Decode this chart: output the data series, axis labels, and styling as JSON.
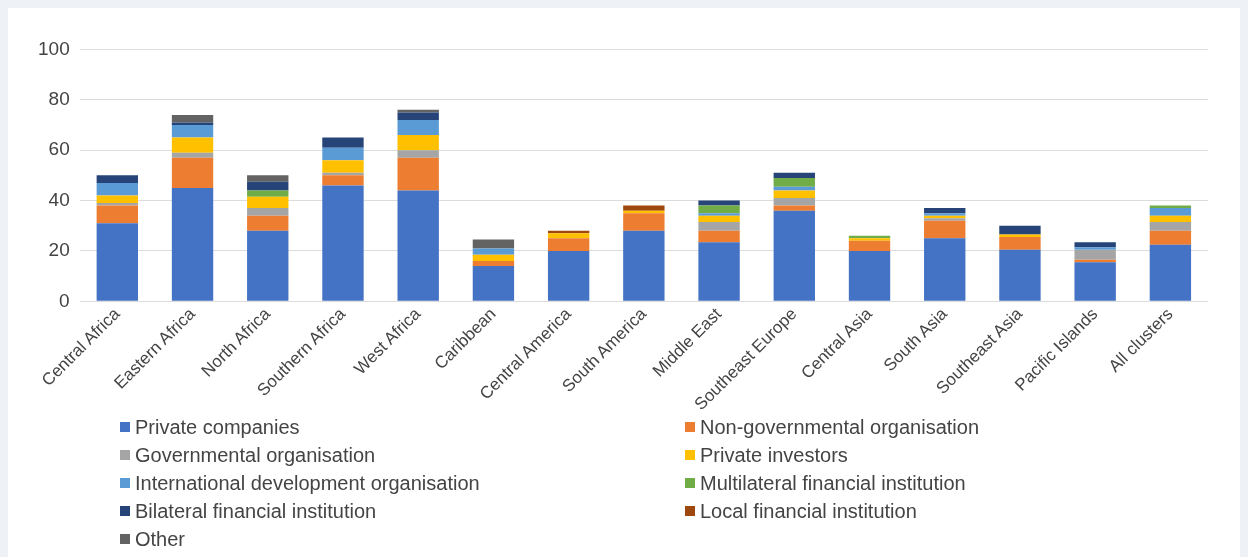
{
  "chart_data": {
    "type": "bar",
    "stacked": true,
    "categories": [
      "Central Africa",
      "Eastern Africa",
      "North Africa",
      "Southern Africa",
      "West Africa",
      "Caribbean",
      "Central America",
      "South America",
      "Middle East",
      "Southeast Europe",
      "Central Asia",
      "South Asia",
      "Southeast Asia",
      "Pacific Islands",
      "All clusters"
    ],
    "series": [
      {
        "name": "Private companies",
        "color": "#4472c4",
        "values": [
          31,
          45,
          28,
          46,
          44,
          14,
          20,
          28,
          23.5,
          36,
          20,
          25,
          20.5,
          15.5,
          22.5
        ]
      },
      {
        "name": "Non-governmental organisation",
        "color": "#ed7d31",
        "values": [
          7,
          12,
          6,
          4,
          13,
          2,
          5,
          7,
          4.5,
          2,
          4,
          7,
          5,
          1,
          5.5
        ]
      },
      {
        "name": "Governmental organisation",
        "color": "#a5a5a5",
        "values": [
          1,
          2,
          3,
          1,
          3,
          0,
          0,
          0,
          3.5,
          3,
          0,
          1,
          0,
          4,
          3.5
        ]
      },
      {
        "name": "Private investors",
        "color": "#ffc000",
        "values": [
          3,
          6,
          4.5,
          5,
          6,
          2.5,
          2,
          1,
          2.5,
          3,
          1,
          1,
          1,
          0,
          2.5
        ]
      },
      {
        "name": "International development organisation",
        "color": "#5b9bd5",
        "values": [
          5,
          5,
          0,
          5,
          6,
          2.5,
          0,
          0,
          1,
          1.5,
          0,
          1,
          0,
          1,
          3
        ]
      },
      {
        "name": "Multilateral financial institution",
        "color": "#70ad47",
        "values": [
          0,
          0,
          2.5,
          0,
          0,
          0,
          0,
          0,
          3,
          3.5,
          1,
          0,
          0,
          0,
          1
        ]
      },
      {
        "name": "Bilateral financial institution",
        "color": "#264478",
        "values": [
          3,
          1,
          3.5,
          4,
          3,
          0,
          0,
          0,
          2,
          2,
          0,
          2,
          3.5,
          2,
          0
        ]
      },
      {
        "name": "Local financial institution",
        "color": "#9e480e",
        "values": [
          0,
          0,
          0,
          0,
          0,
          0,
          1,
          2,
          0,
          0,
          0,
          0,
          0,
          0,
          0
        ]
      },
      {
        "name": "Other",
        "color": "#636363",
        "values": [
          0,
          3,
          2.5,
          0,
          1,
          3.5,
          0,
          0,
          0,
          0,
          0,
          0,
          0,
          0,
          0
        ]
      }
    ],
    "ylim": [
      0,
      100
    ],
    "yticks": [
      0,
      20,
      40,
      60,
      80,
      100
    ],
    "grid": "y",
    "legend": "bottom"
  }
}
